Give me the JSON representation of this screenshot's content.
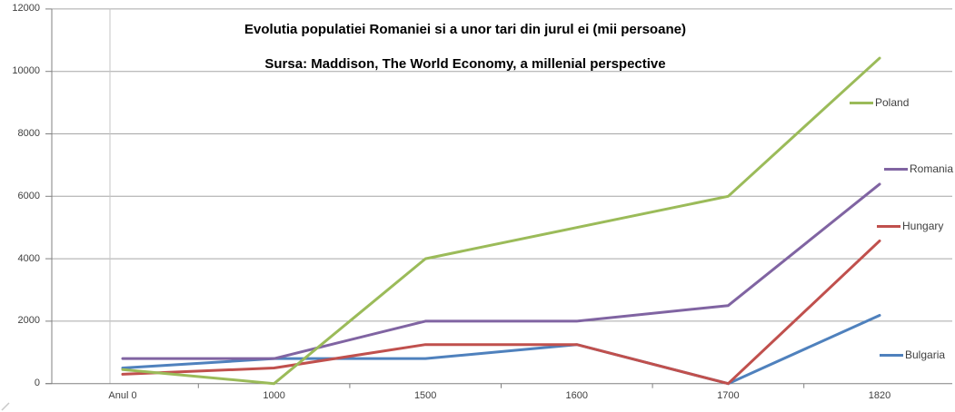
{
  "chart_data": {
    "type": "line",
    "title": "Evolutia populatiei Romaniei si a unor tari din jurul ei (mii persoane)",
    "subtitle": "Sursa: Maddison, The World Economy, a millenial perspective",
    "categories": [
      "Anul 0",
      "1000",
      "1500",
      "1600",
      "1700",
      "1820"
    ],
    "series": [
      {
        "name": "Poland",
        "color": "#9BBB59",
        "values": [
          450,
          0,
          4000,
          5000,
          6000,
          10426
        ]
      },
      {
        "name": "Romania",
        "color": "#8064A2",
        "values": [
          800,
          800,
          2000,
          2000,
          2500,
          6389
        ]
      },
      {
        "name": "Hungary",
        "color": "#C0504D",
        "values": [
          300,
          500,
          1250,
          1250,
          0,
          4571
        ]
      },
      {
        "name": "Bulgaria",
        "color": "#4F81BD",
        "values": [
          500,
          800,
          800,
          1250,
          0,
          2187
        ]
      }
    ],
    "xlabel": "",
    "ylabel": "",
    "ylim": [
      0,
      12000
    ],
    "yticks": [
      0,
      2000,
      4000,
      6000,
      8000,
      10000,
      12000
    ],
    "grid": true,
    "legend_position": "right"
  }
}
